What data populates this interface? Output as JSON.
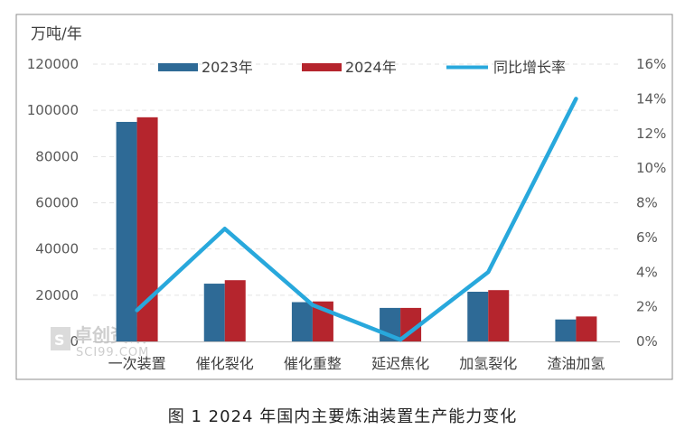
{
  "chart_data": {
    "type": "bar",
    "unit_label": "万吨/年",
    "caption": "图 1  2024 年国内主要炼油装置生产能力变化",
    "categories": [
      "一次装置",
      "催化裂化",
      "催化重整",
      "延迟焦化",
      "加氢裂化",
      "渣油加氢"
    ],
    "series": [
      {
        "name": "2023年",
        "type": "bar",
        "axis": "left",
        "color": "#2e6a96",
        "values": [
          95000,
          25000,
          17000,
          14500,
          21500,
          9500
        ]
      },
      {
        "name": "2024年",
        "type": "bar",
        "axis": "left",
        "color": "#b5252d",
        "values": [
          97000,
          26500,
          17300,
          14500,
          22200,
          10800
        ]
      },
      {
        "name": "同比增长率",
        "type": "line",
        "axis": "right",
        "color": "#28a8dc",
        "values": [
          0.018,
          0.065,
          0.021,
          0.001,
          0.04,
          0.14
        ]
      }
    ],
    "left_axis": {
      "min": 0,
      "max": 120000,
      "ticks": [
        "0",
        "20000",
        "40000",
        "60000",
        "80000",
        "100000",
        "120000"
      ]
    },
    "right_axis": {
      "min": 0,
      "max": 0.16,
      "ticks": [
        "0%",
        "2%",
        "4%",
        "6%",
        "8%",
        "10%",
        "12%",
        "14%",
        "16%"
      ]
    },
    "grid": "horizontal dashed",
    "legend_position": "top"
  },
  "watermark": {
    "text": "卓创资讯",
    "sub": "SCI99.COM",
    "box": "S"
  }
}
